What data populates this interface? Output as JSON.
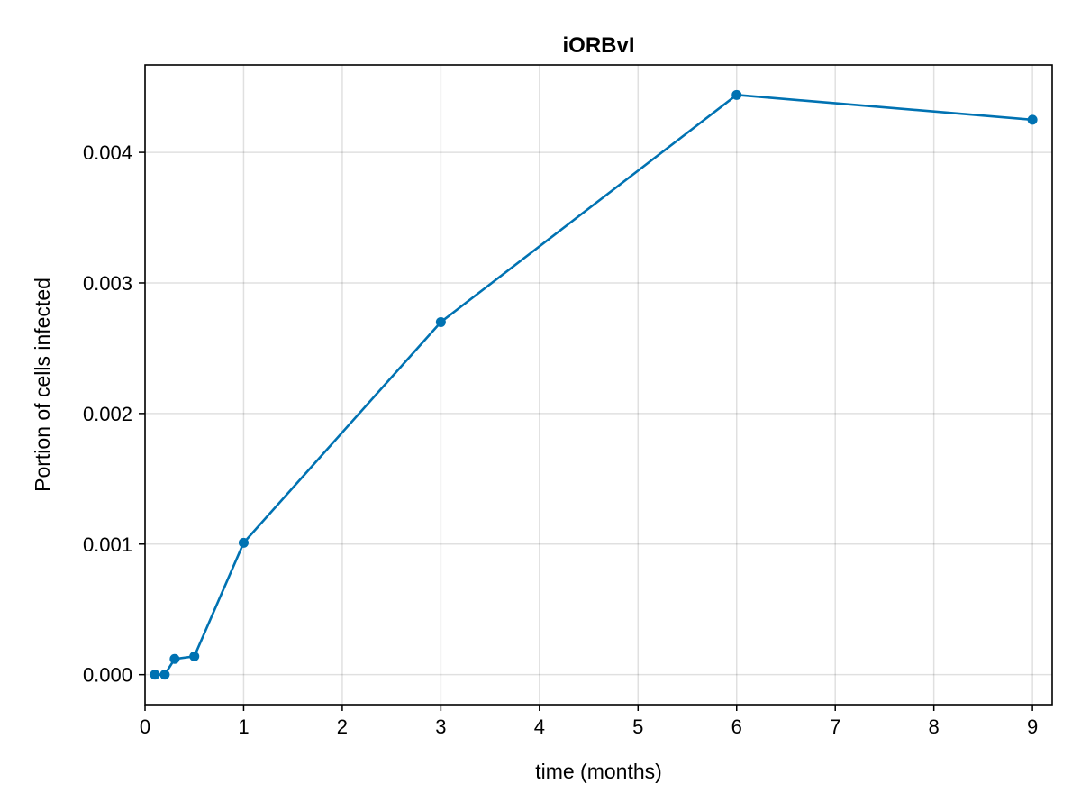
{
  "chart_data": {
    "type": "line",
    "title": "iORBvI",
    "xlabel": "time (months)",
    "ylabel": "Portion of cells infected",
    "xlim": [
      0,
      9.2
    ],
    "ylim": [
      -0.00023,
      0.00467
    ],
    "x_ticks": [
      0,
      1,
      2,
      3,
      4,
      5,
      6,
      7,
      8,
      9
    ],
    "y_ticks": [
      0.0,
      0.001,
      0.002,
      0.003,
      0.004
    ],
    "x_tick_labels": [
      "0",
      "1",
      "2",
      "3",
      "4",
      "5",
      "6",
      "7",
      "8",
      "9"
    ],
    "y_tick_labels": [
      "0.000",
      "0.001",
      "0.002",
      "0.003",
      "0.004"
    ],
    "grid": true,
    "series": [
      {
        "color": "#0072b2",
        "x": [
          0.1,
          0.2,
          0.3,
          0.5,
          1,
          3,
          6,
          9
        ],
        "y": [
          0.0,
          0.0,
          0.00012,
          0.00014,
          0.00101,
          0.0027,
          0.00444,
          0.00425
        ]
      }
    ]
  }
}
